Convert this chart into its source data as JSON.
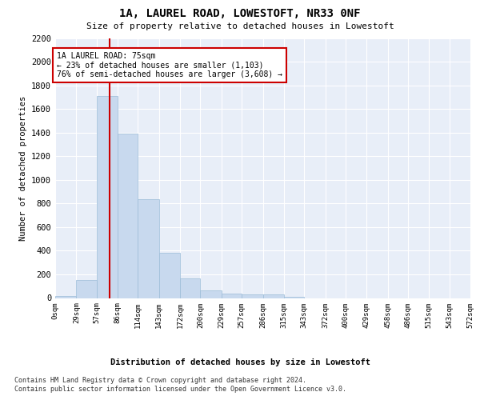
{
  "title": "1A, LAUREL ROAD, LOWESTOFT, NR33 0NF",
  "subtitle": "Size of property relative to detached houses in Lowestoft",
  "xlabel": "Distribution of detached houses by size in Lowestoft",
  "ylabel": "Number of detached properties",
  "bar_color": "#c8d9ee",
  "bar_edge_color": "#9bbcd8",
  "background_color": "#e8eef8",
  "grid_color": "#ffffff",
  "bin_edges": [
    0,
    29,
    57,
    86,
    114,
    143,
    172,
    200,
    229,
    257,
    286,
    315,
    343,
    372,
    400,
    429,
    458,
    486,
    515,
    543,
    572
  ],
  "bar_heights": [
    15,
    155,
    1710,
    1390,
    835,
    385,
    165,
    65,
    35,
    28,
    28,
    8,
    0,
    0,
    0,
    0,
    0,
    0,
    0,
    0
  ],
  "tick_labels": [
    "0sqm",
    "29sqm",
    "57sqm",
    "86sqm",
    "114sqm",
    "143sqm",
    "172sqm",
    "200sqm",
    "229sqm",
    "257sqm",
    "286sqm",
    "315sqm",
    "343sqm",
    "372sqm",
    "400sqm",
    "429sqm",
    "458sqm",
    "486sqm",
    "515sqm",
    "543sqm",
    "572sqm"
  ],
  "ylim": [
    0,
    2200
  ],
  "yticks": [
    0,
    200,
    400,
    600,
    800,
    1000,
    1200,
    1400,
    1600,
    1800,
    2000,
    2200
  ],
  "vline_x": 75,
  "vline_color": "#cc0000",
  "annotation_text": "1A LAUREL ROAD: 75sqm\n← 23% of detached houses are smaller (1,103)\n76% of semi-detached houses are larger (3,608) →",
  "annotation_box_color": "#ffffff",
  "annotation_box_edge_color": "#cc0000",
  "footer_line1": "Contains HM Land Registry data © Crown copyright and database right 2024.",
  "footer_line2": "Contains public sector information licensed under the Open Government Licence v3.0."
}
